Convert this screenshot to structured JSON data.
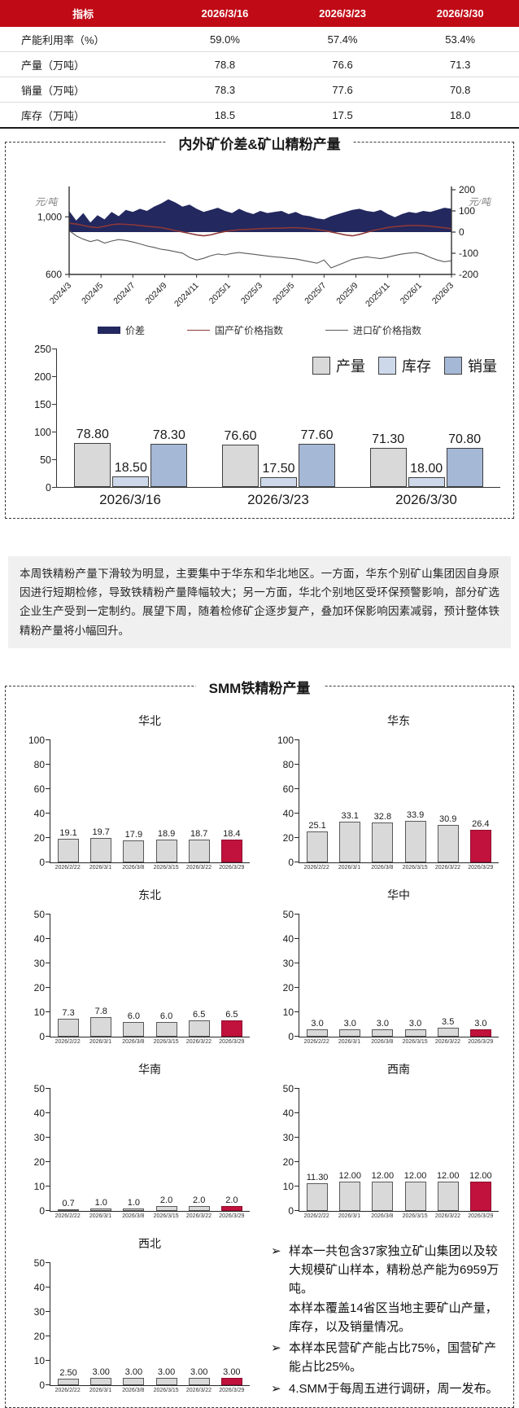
{
  "table": {
    "headers": [
      "指标",
      "2026/3/16",
      "2026/3/23",
      "2026/3/30"
    ],
    "rows": [
      {
        "label": "产能利用率（%）",
        "values": [
          "59.0%",
          "57.4%",
          "53.4%"
        ]
      },
      {
        "label": "产量（万吨）",
        "values": [
          "78.8",
          "76.6",
          "71.3"
        ]
      },
      {
        "label": "销量（万吨）",
        "values": [
          "78.3",
          "77.6",
          "70.8"
        ]
      },
      {
        "label": "库存（万吨）",
        "values": [
          "18.5",
          "17.5",
          "18.0"
        ]
      }
    ]
  },
  "chart_data": [
    {
      "id": "price-spread-chart",
      "type": "area+line",
      "title": "内外矿价差&矿山精粉产量",
      "left_axis": {
        "unit": "元/吨",
        "ticks": [
          {
            "label": "1,000",
            "value": 1000
          },
          {
            "label": "600",
            "value": 600
          }
        ]
      },
      "right_axis": {
        "unit": "元/吨",
        "ticks": [
          200,
          100,
          0,
          -100,
          -200
        ],
        "range": [
          -200,
          200
        ]
      },
      "x_labels": [
        "2024/3",
        "2024/5",
        "2024/7",
        "2024/9",
        "2024/11",
        "2025/1",
        "2025/3",
        "2025/5",
        "2025/7",
        "2025/9",
        "2025/11",
        "2026/1",
        "2026/3"
      ],
      "legend": [
        {
          "label": "价差",
          "type": "area",
          "color": "#23285F"
        },
        {
          "label": "国产矿价格指数",
          "type": "line",
          "color": "#8C3836"
        },
        {
          "label": "进口矿价格指数",
          "type": "line",
          "color": "#5A5A5A"
        }
      ],
      "series": [
        {
          "name": "价差",
          "axis": "right",
          "type": "area",
          "color": "#23285F",
          "values": [
            100,
            55,
            90,
            45,
            80,
            60,
            95,
            75,
            105,
            95,
            110,
            100,
            120,
            135,
            155,
            140,
            120,
            130,
            110,
            95,
            105,
            115,
            100,
            90,
            110,
            95,
            85,
            100,
            90,
            95,
            100,
            85,
            95,
            80,
            75,
            65,
            60,
            75,
            85,
            95,
            105,
            110,
            100,
            95,
            105,
            85,
            70,
            85,
            95,
            90,
            100,
            95,
            105,
            115,
            110
          ]
        },
        {
          "name": "国产矿价格指数",
          "axis": "left",
          "type": "line",
          "color": "#8C3836",
          "values": [
            955,
            950,
            940,
            930,
            925,
            935,
            945,
            950,
            948,
            945,
            940,
            935,
            930,
            925,
            915,
            905,
            895,
            885,
            875,
            868,
            875,
            888,
            898,
            905,
            910,
            912,
            915,
            918,
            920,
            921,
            922,
            924,
            925,
            922,
            918,
            912,
            905,
            895,
            885,
            875,
            868,
            878,
            892,
            906,
            916,
            926,
            932,
            936,
            940,
            940,
            938,
            935,
            930,
            924,
            918
          ]
        },
        {
          "name": "进口矿价格指数",
          "axis": "left",
          "type": "line",
          "color": "#5A5A5A",
          "values": [
            905,
            868,
            845,
            828,
            840,
            818,
            832,
            842,
            836,
            825,
            812,
            798,
            788,
            775,
            768,
            758,
            748,
            718,
            700,
            712,
            730,
            742,
            736,
            746,
            752,
            746,
            740,
            734,
            728,
            722,
            718,
            712,
            708,
            698,
            688,
            678,
            700,
            645,
            665,
            685,
            705,
            715,
            722,
            716,
            710,
            720,
            732,
            742,
            748,
            752,
            740,
            718,
            700,
            688,
            695
          ]
        }
      ]
    },
    {
      "id": "production-inventory-sales",
      "type": "bar",
      "categories": [
        "2026/3/16",
        "2026/3/23",
        "2026/3/30"
      ],
      "ylim": [
        0,
        250
      ],
      "yticks": [
        0,
        50,
        100,
        150,
        200,
        250
      ],
      "series": [
        {
          "name": "产量",
          "color": "#D9D9D9",
          "values": [
            78.8,
            76.6,
            71.3
          ],
          "labels": [
            "78.80",
            "76.60",
            "71.30"
          ]
        },
        {
          "name": "库存",
          "color": "#CDD9EA",
          "values": [
            18.5,
            17.5,
            18.0
          ],
          "labels": [
            "18.50",
            "17.50",
            "18.00"
          ]
        },
        {
          "name": "销量",
          "color": "#A5B8D5",
          "values": [
            78.3,
            77.6,
            70.8
          ],
          "labels": [
            "78.30",
            "77.60",
            "70.80"
          ]
        }
      ]
    },
    {
      "id": "smm-regional-output",
      "type": "bar",
      "title": "SMM铁精粉产量",
      "categories": [
        "2026/2/22",
        "2026/3/1",
        "2026/3/8",
        "2026/3/15",
        "2026/3/22",
        "2026/3/29"
      ],
      "bar_color": "#D9D9D9",
      "bar_border": "#595959",
      "highlight_color": "#C0123C",
      "highlight_index": 5,
      "charts": [
        {
          "region": "华北",
          "ylim": [
            0,
            100
          ],
          "yticks": [
            0,
            20,
            40,
            60,
            80,
            100
          ],
          "values": [
            19.1,
            19.7,
            17.9,
            18.9,
            18.7,
            18.4
          ],
          "labels": [
            "19.1",
            "19.7",
            "17.9",
            "18.9",
            "18.7",
            "18.4"
          ]
        },
        {
          "region": "华东",
          "ylim": [
            0,
            100
          ],
          "yticks": [
            0,
            20,
            40,
            60,
            80,
            100
          ],
          "values": [
            25.1,
            33.1,
            32.8,
            33.9,
            30.9,
            26.4
          ],
          "labels": [
            "25.1",
            "33.1",
            "32.8",
            "33.9",
            "30.9",
            "26.4"
          ]
        },
        {
          "region": "东北",
          "ylim": [
            0,
            50
          ],
          "yticks": [
            0,
            10,
            20,
            30,
            40,
            50
          ],
          "values": [
            7.3,
            7.8,
            6.0,
            6.0,
            6.5,
            6.5
          ],
          "labels": [
            "7.3",
            "7.8",
            "6.0",
            "6.0",
            "6.5",
            "6.5"
          ]
        },
        {
          "region": "华中",
          "ylim": [
            0,
            50
          ],
          "yticks": [
            0,
            10,
            20,
            30,
            40,
            50
          ],
          "values": [
            3.0,
            3.0,
            3.0,
            3.0,
            3.5,
            3.0
          ],
          "labels": [
            "3.0",
            "3.0",
            "3.0",
            "3.0",
            "3.5",
            "3.0"
          ]
        },
        {
          "region": "华南",
          "ylim": [
            0,
            50
          ],
          "yticks": [
            0,
            10,
            20,
            30,
            40,
            50
          ],
          "values": [
            0.7,
            1.0,
            1.0,
            2.0,
            2.0,
            2.0
          ],
          "labels": [
            "0.7",
            "1.0",
            "1.0",
            "2.0",
            "2.0",
            "2.0"
          ]
        },
        {
          "region": "西南",
          "ylim": [
            0,
            50
          ],
          "yticks": [
            0,
            10,
            20,
            30,
            40,
            50
          ],
          "values": [
            11.3,
            12.0,
            12.0,
            12.0,
            12.0,
            12.0
          ],
          "labels": [
            "11.30",
            "12.00",
            "12.00",
            "12.00",
            "12.00",
            "12.00"
          ]
        },
        {
          "region": "西北",
          "ylim": [
            0,
            50
          ],
          "yticks": [
            0,
            10,
            20,
            30,
            40,
            50
          ],
          "values": [
            2.5,
            3.0,
            3.0,
            3.0,
            3.0,
            3.0
          ],
          "labels": [
            "2.50",
            "3.00",
            "3.00",
            "3.00",
            "3.00",
            "3.00"
          ]
        }
      ]
    }
  ],
  "summary": {
    "text": "本周铁精粉产量下滑较为明显，主要集中于华东和华北地区。一方面，华东个别矿山集团因自身原因进行短期检修，导致铁精粉产量降幅较大；另一方面，华北个别地区受环保预警影响，部分矿选企业生产受到一定制约。展望下周，随着检修矿企逐步复产，叠加环保影响因素减弱，预计整体铁精粉产量将小幅回升。"
  },
  "notes": {
    "marker": "➢",
    "items": [
      [
        "样本一共包含37家独立矿山集团以及较大规模矿山样本，精粉总产能为6959万吨。",
        "本样本覆盖14省区当地主要矿山产量，库存，以及销量情况。"
      ],
      [
        "本样本民营矿产能占比75%，国营矿产能占比25%。"
      ],
      [
        "4.SMM于每周五进行调研，周一发布。"
      ]
    ]
  },
  "colors": {
    "header_red": "#C00A16",
    "spread_navy": "#23285F",
    "domestic_line": "#8C3836",
    "import_line": "#5A5A5A",
    "bar_gray": "#D9D9D9",
    "bar_light_blue": "#CDD9EA",
    "bar_blue": "#A5B8D5",
    "highlight_red": "#C0123C",
    "summary_bg": "#F0F0F0"
  }
}
